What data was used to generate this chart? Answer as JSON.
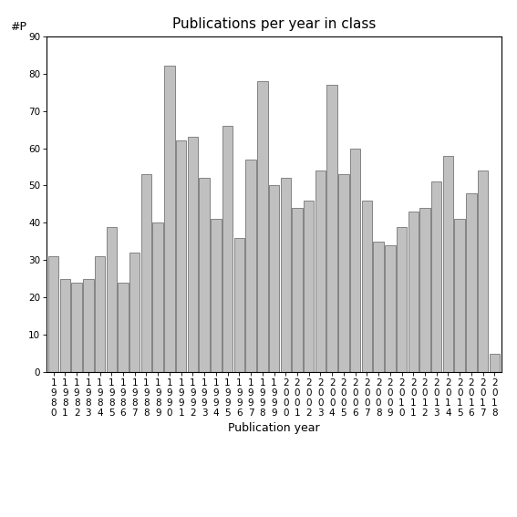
{
  "title": "Publications per year in class",
  "xlabel": "Publication year",
  "ylim": [
    0,
    90
  ],
  "yticks": [
    0,
    10,
    20,
    30,
    40,
    50,
    60,
    70,
    80,
    90
  ],
  "bar_color": "#c0c0c0",
  "bar_edgecolor": "#606060",
  "years": [
    1980,
    1981,
    1982,
    1983,
    1984,
    1985,
    1986,
    1987,
    1988,
    1989,
    1990,
    1991,
    1992,
    1993,
    1994,
    1995,
    1996,
    1997,
    1998,
    1999,
    2000,
    2001,
    2002,
    2003,
    2004,
    2005,
    2006,
    2007,
    2008,
    2009,
    2010,
    2011,
    2012,
    2013,
    2014,
    2015,
    2016,
    2017,
    2018
  ],
  "values": [
    31,
    25,
    24,
    25,
    31,
    39,
    24,
    32,
    53,
    40,
    82,
    62,
    63,
    52,
    41,
    66,
    36,
    57,
    78,
    50,
    52,
    44,
    46,
    54,
    77,
    53,
    60,
    46,
    35,
    34,
    39,
    43,
    44,
    51,
    58,
    41,
    48,
    54,
    5
  ],
  "background_color": "#ffffff",
  "tick_label_fontsize": 7.5,
  "title_fontsize": 11,
  "axis_label_fontsize": 9
}
